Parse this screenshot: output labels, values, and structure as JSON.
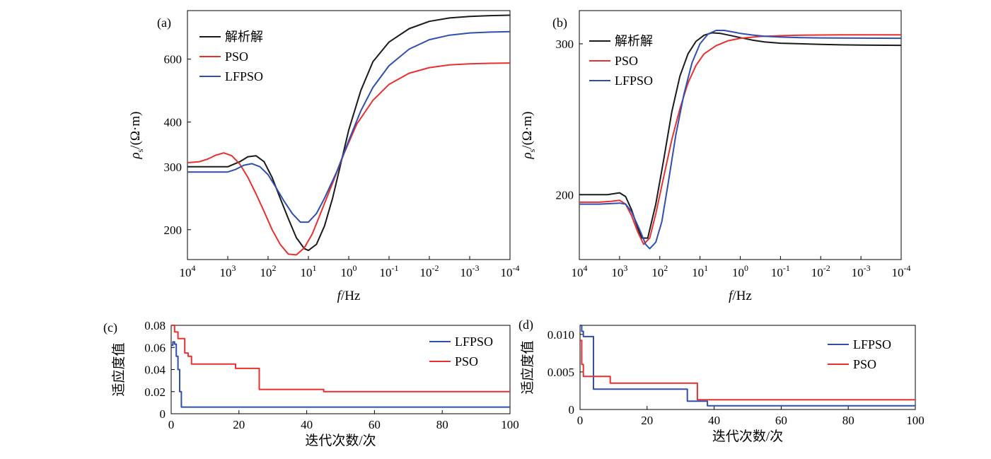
{
  "figure": {
    "panels": [
      "(a)",
      "(b)",
      "(c)",
      "(d)"
    ]
  },
  "colors": {
    "analytic": "#1a1a1a",
    "pso": "#e8312f",
    "lfpso": "#2f4fb0"
  },
  "chart_data": [
    {
      "panel": "(a)",
      "type": "line",
      "xlabel_italic": "f",
      "xlabel_unit": "/Hz",
      "ylabel_main": "ρ",
      "ylabel_sub": "s",
      "ylabel_unit": "/(Ω·m)",
      "x_scale": "log",
      "x_reversed": true,
      "xlim": [
        4,
        -4
      ],
      "x_ticks": [
        {
          "base": "10",
          "exp": "4"
        },
        {
          "base": "10",
          "exp": "3"
        },
        {
          "base": "10",
          "exp": "2"
        },
        {
          "base": "10",
          "exp": "1"
        },
        {
          "base": "10",
          "exp": "0"
        },
        {
          "base": "10",
          "exp": "-1"
        },
        {
          "base": "10",
          "exp": "-2"
        },
        {
          "base": "10",
          "exp": "-3"
        },
        {
          "base": "10",
          "exp": "-4"
        }
      ],
      "y_scale": "log",
      "ylim": [
        165,
        820
      ],
      "y_ticks": [
        "200",
        "300",
        "400",
        "600"
      ],
      "legend_position": "top-left",
      "series": [
        {
          "name": "解析解",
          "color_key": "analytic",
          "x": [
            4,
            3.5,
            3,
            2.7,
            2.5,
            2.3,
            2.1,
            1.9,
            1.7,
            1.5,
            1.3,
            1.1,
            1,
            0.8,
            0.6,
            0.4,
            0.2,
            0,
            -0.3,
            -0.6,
            -1,
            -1.5,
            -2,
            -2.5,
            -3,
            -3.5,
            -4
          ],
          "y": [
            300,
            300,
            300,
            310,
            320,
            322,
            310,
            280,
            245,
            215,
            190,
            177,
            175,
            182,
            205,
            245,
            305,
            380,
            490,
            590,
            670,
            730,
            765,
            782,
            790,
            794,
            796
          ]
        },
        {
          "name": "PSO",
          "color_key": "pso",
          "x": [
            4,
            3.7,
            3.5,
            3.3,
            3.1,
            2.9,
            2.7,
            2.5,
            2.3,
            2.1,
            1.9,
            1.7,
            1.5,
            1.3,
            1.1,
            0.9,
            0.7,
            0.4,
            0.1,
            -0.2,
            -0.6,
            -1,
            -1.5,
            -2,
            -2.5,
            -3,
            -3.5,
            -4
          ],
          "y": [
            308,
            310,
            315,
            323,
            328,
            322,
            305,
            280,
            252,
            225,
            200,
            182,
            171,
            170,
            178,
            195,
            222,
            270,
            330,
            395,
            460,
            510,
            548,
            568,
            578,
            582,
            584,
            585
          ]
        },
        {
          "name": "LFPSO",
          "color_key": "lfpso",
          "x": [
            4,
            3.5,
            3,
            2.8,
            2.6,
            2.4,
            2.2,
            2,
            1.8,
            1.6,
            1.4,
            1.2,
            1,
            0.8,
            0.6,
            0.3,
            0,
            -0.3,
            -0.6,
            -1,
            -1.5,
            -2,
            -2.5,
            -3,
            -3.5,
            -4
          ],
          "y": [
            290,
            290,
            290,
            295,
            303,
            306,
            300,
            285,
            262,
            240,
            222,
            210,
            210,
            222,
            245,
            290,
            355,
            430,
            500,
            575,
            640,
            680,
            700,
            710,
            714,
            716
          ]
        }
      ]
    },
    {
      "panel": "(b)",
      "type": "line",
      "xlabel_italic": "f",
      "xlabel_unit": "/Hz",
      "ylabel_main": "ρ",
      "ylabel_sub": "s",
      "ylabel_unit": "/(Ω·m)",
      "x_scale": "log",
      "x_reversed": true,
      "xlim": [
        4,
        -4
      ],
      "x_ticks": [
        {
          "base": "10",
          "exp": "4"
        },
        {
          "base": "10",
          "exp": "3"
        },
        {
          "base": "10",
          "exp": "2"
        },
        {
          "base": "10",
          "exp": "1"
        },
        {
          "base": "10",
          "exp": "0"
        },
        {
          "base": "10",
          "exp": "-1"
        },
        {
          "base": "10",
          "exp": "-2"
        },
        {
          "base": "10",
          "exp": "-3"
        },
        {
          "base": "10",
          "exp": "-4"
        }
      ],
      "y_scale": "log",
      "ylim": [
        168,
        328
      ],
      "y_ticks": [
        "200",
        "300"
      ],
      "legend_position": "top-left",
      "series": [
        {
          "name": "解析解",
          "color_key": "analytic",
          "x": [
            4,
            3.3,
            3,
            2.85,
            2.7,
            2.55,
            2.45,
            2.3,
            2.1,
            1.9,
            1.7,
            1.5,
            1.3,
            1.1,
            0.9,
            0.7,
            0.5,
            0.2,
            0,
            -0.3,
            -0.6,
            -1,
            -1.5,
            -2,
            -2.5,
            -3,
            -4
          ],
          "y": [
            200,
            200,
            201,
            199,
            192,
            183,
            178,
            178,
            195,
            220,
            250,
            275,
            292,
            302,
            307,
            309,
            308.5,
            306.5,
            305,
            303,
            301.5,
            300.5,
            300,
            299.5,
            299.2,
            299,
            298.8
          ]
        },
        {
          "name": "PSO",
          "color_key": "pso",
          "x": [
            4,
            3.5,
            3.2,
            3,
            2.85,
            2.7,
            2.55,
            2.4,
            2.25,
            2.1,
            1.9,
            1.7,
            1.5,
            1.3,
            1.1,
            0.9,
            0.6,
            0.3,
            0,
            -0.5,
            -1,
            -1.5,
            -2,
            -2.5,
            -3,
            -4
          ],
          "y": [
            196,
            196,
            196.5,
            197,
            195,
            189,
            181,
            175,
            178,
            190,
            210,
            232,
            252,
            270,
            283,
            292,
            298.5,
            302.5,
            304.5,
            306,
            306.6,
            307,
            307.2,
            307.3,
            307.3,
            307.3
          ]
        },
        {
          "name": "LFPSO",
          "color_key": "lfpso",
          "x": [
            4,
            3.5,
            3,
            2.85,
            2.7,
            2.5,
            2.35,
            2.25,
            2.1,
            1.95,
            1.8,
            1.6,
            1.4,
            1.2,
            1,
            0.8,
            0.6,
            0.4,
            0.2,
            0,
            -0.3,
            -0.6,
            -1,
            -1.5,
            -2,
            -2.5,
            -3,
            -4
          ],
          "y": [
            195,
            195,
            195.5,
            195,
            191,
            182,
            175,
            173,
            176,
            186,
            205,
            235,
            262,
            285,
            300,
            308,
            311,
            311,
            309.8,
            308.5,
            307.2,
            306.2,
            305.5,
            305,
            304.8,
            304.7,
            304.6,
            304.5
          ]
        }
      ]
    },
    {
      "panel": "(c)",
      "type": "line",
      "step": true,
      "xlabel": "迭代次数/次",
      "ylabel": "适应度值",
      "xlim": [
        0,
        100
      ],
      "ylim": [
        0,
        0.08
      ],
      "x_ticks": [
        "0",
        "20",
        "40",
        "60",
        "80",
        "100"
      ],
      "y_ticks": [
        "0",
        "0.02",
        "0.04",
        "0.06",
        "0.08"
      ],
      "legend_position": "top-right",
      "series": [
        {
          "name": "LFPSO",
          "color_key": "lfpso",
          "x": [
            0,
            0.5,
            1,
            1.5,
            2,
            2.5,
            3,
            100
          ],
          "y": [
            0.062,
            0.065,
            0.063,
            0.052,
            0.04,
            0.02,
            0.006,
            0.006
          ]
        },
        {
          "name": "PSO",
          "color_key": "pso",
          "x": [
            0,
            1,
            2,
            4,
            5,
            6,
            19,
            26,
            45,
            100
          ],
          "y": [
            0.08,
            0.074,
            0.068,
            0.055,
            0.052,
            0.045,
            0.041,
            0.022,
            0.02,
            0.02
          ]
        }
      ]
    },
    {
      "panel": "(d)",
      "type": "line",
      "step": true,
      "xlabel": "迭代次数/次",
      "ylabel": "适应度值",
      "xlim": [
        0,
        100
      ],
      "ylim": [
        0,
        0.0112
      ],
      "x_ticks": [
        "0",
        "20",
        "40",
        "60",
        "80",
        "100"
      ],
      "y_ticks": [
        "0",
        "0.005",
        "0.010"
      ],
      "legend_position": "top-right",
      "series": [
        {
          "name": "LFPSO",
          "color_key": "lfpso",
          "x": [
            0,
            0.5,
            1,
            3,
            4,
            31,
            32,
            38,
            100
          ],
          "y": [
            0.0112,
            0.0104,
            0.0097,
            0.0097,
            0.0027,
            0.0027,
            0.0011,
            0.0005,
            0.0005
          ]
        },
        {
          "name": "PSO",
          "color_key": "pso",
          "x": [
            0,
            0.5,
            1,
            8,
            9,
            35,
            100
          ],
          "y": [
            0.0092,
            0.006,
            0.0044,
            0.0044,
            0.0035,
            0.0013,
            0.0013
          ]
        }
      ]
    }
  ]
}
